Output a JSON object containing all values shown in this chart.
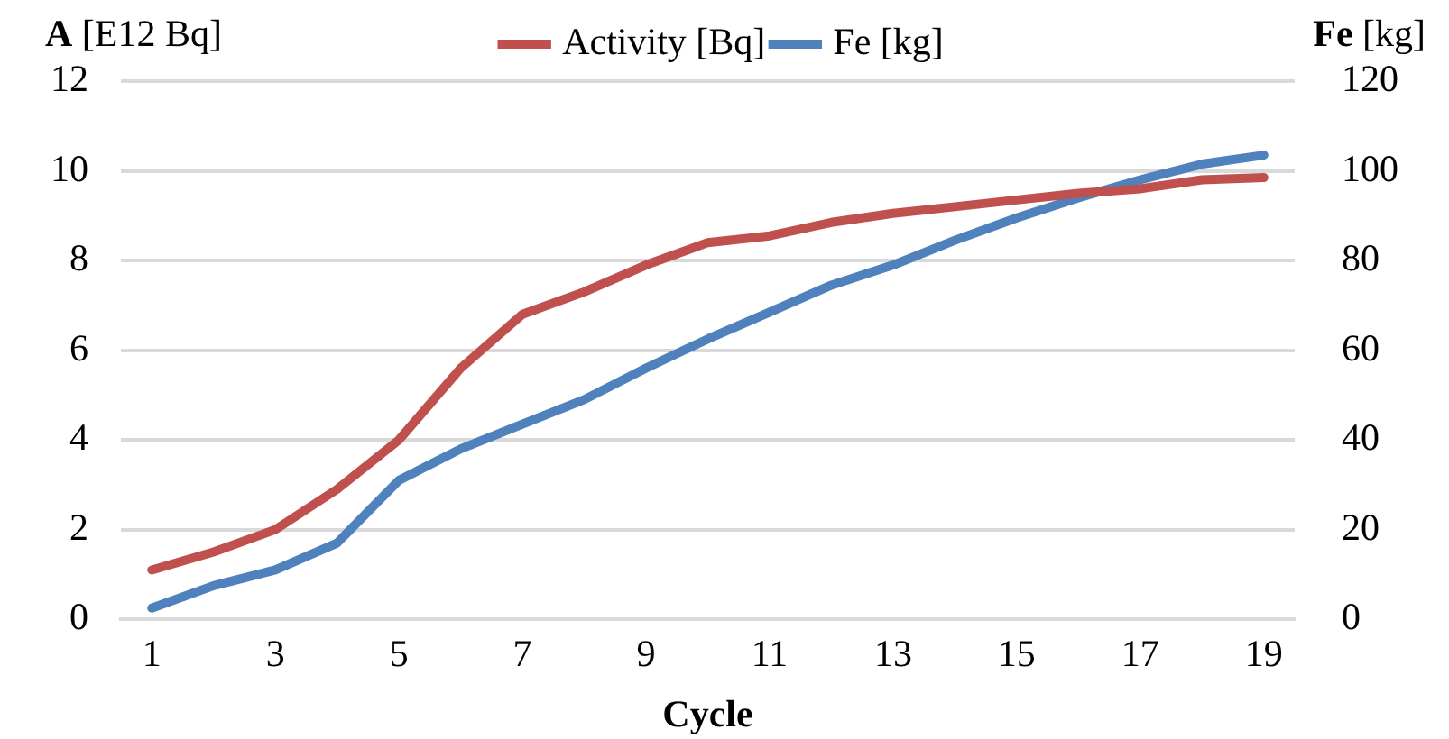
{
  "chart_data": {
    "type": "line",
    "xlabel": "Cycle",
    "ylabel": "A [E12 Bq]",
    "y2label": "Fe [kg]",
    "x": [
      1,
      2,
      3,
      4,
      5,
      6,
      7,
      8,
      9,
      10,
      11,
      12,
      13,
      14,
      15,
      16,
      17,
      18,
      19
    ],
    "xlim": [
      0.5,
      19.5
    ],
    "xticks": [
      1,
      3,
      5,
      7,
      9,
      11,
      13,
      15,
      17,
      19
    ],
    "series": [
      {
        "name": "Activity [Bq]",
        "color": "#c0504d",
        "values": [
          1.1,
          1.5,
          2.0,
          2.9,
          4.0,
          5.6,
          6.8,
          7.3,
          7.9,
          8.4,
          8.55,
          8.85,
          9.05,
          9.2,
          9.35,
          9.5,
          9.6,
          9.8,
          9.85
        ]
      },
      {
        "name": "Fe [kg]",
        "color": "#4f81bd",
        "axis": "y2",
        "values": [
          2.5,
          7.5,
          11,
          17,
          31,
          38,
          43.5,
          49,
          56,
          62.5,
          68.5,
          74.5,
          79,
          84.5,
          89.5,
          94,
          98,
          101.5,
          103.5
        ]
      }
    ],
    "ylim": [
      0,
      12
    ],
    "yticks": [
      0,
      2,
      4,
      6,
      8,
      10,
      12
    ],
    "y2lim": [
      0,
      120
    ],
    "y2ticks": [
      0,
      20,
      40,
      60,
      80,
      100,
      120
    ],
    "grid": "y",
    "legend": "top",
    "marker": "none",
    "line_style": "solid"
  }
}
